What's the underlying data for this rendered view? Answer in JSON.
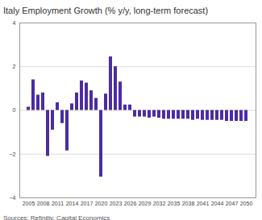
{
  "chart_data": {
    "type": "bar",
    "title": "Italy Employment Growth (% y/y, long-term forecast)",
    "caption": "Sources: Refinitiv, Capital Economics",
    "categories": [
      "2005",
      null,
      null,
      "2008",
      null,
      null,
      "2011",
      null,
      null,
      "2014",
      null,
      null,
      "2017",
      null,
      null,
      "2020",
      null,
      null,
      "2023",
      null,
      null,
      "2026",
      null,
      null,
      "2029",
      null,
      null,
      "2032",
      null,
      null,
      "2035",
      null,
      null,
      "2038",
      null,
      null,
      "2041",
      null,
      null,
      "2044",
      null,
      null,
      "2047",
      null,
      null,
      "2050"
    ],
    "values": [
      0.15,
      1.4,
      0.7,
      0.8,
      -2.1,
      -0.9,
      0.35,
      -0.6,
      -1.85,
      0.3,
      0.8,
      1.35,
      1.25,
      0.9,
      0.55,
      -3.05,
      0.75,
      2.45,
      2.0,
      1.3,
      0.25,
      0.25,
      -0.3,
      -0.3,
      -0.3,
      -0.35,
      -0.3,
      -0.35,
      -0.4,
      -0.4,
      -0.4,
      -0.4,
      -0.4,
      -0.4,
      -0.45,
      -0.4,
      -0.45,
      -0.45,
      -0.45,
      -0.45,
      -0.45,
      -0.5,
      -0.5,
      -0.5,
      -0.5,
      -0.5
    ],
    "color": "#4b2ca3",
    "ylim": [
      -4,
      4
    ],
    "yticks": [
      -4,
      -2,
      0,
      2,
      4
    ],
    "grid": true
  }
}
